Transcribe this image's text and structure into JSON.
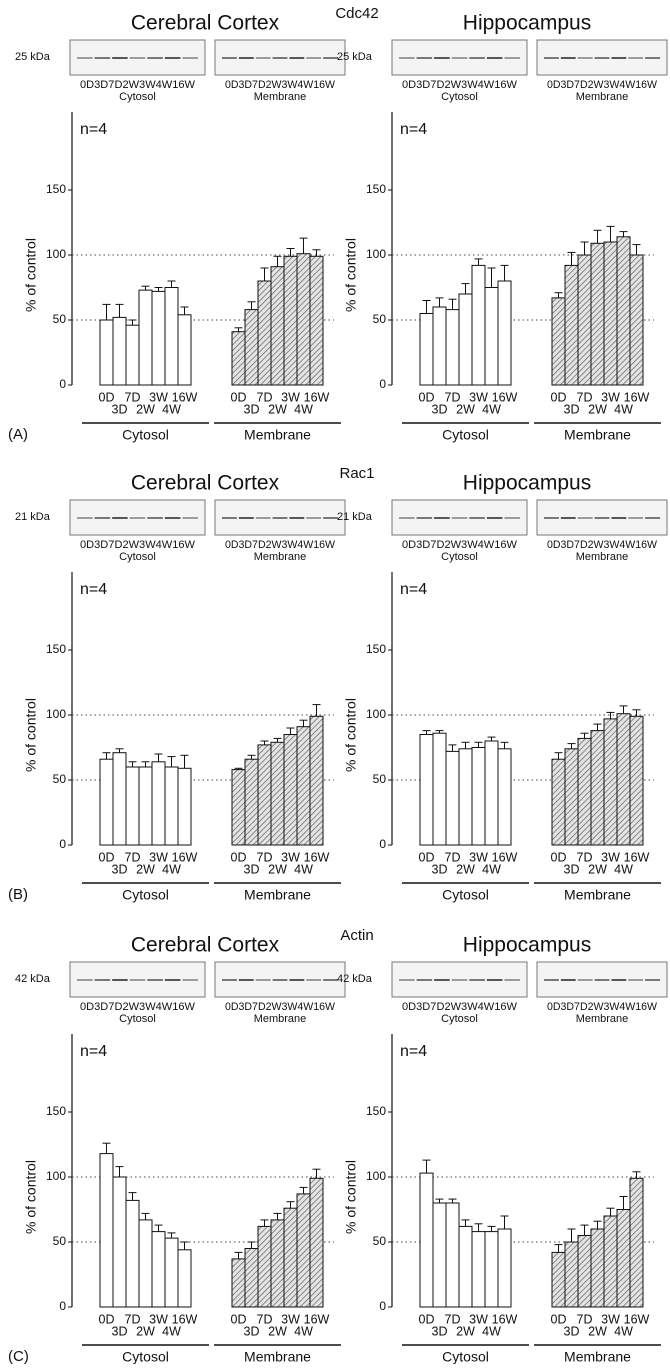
{
  "rows": [
    {
      "label": "(A)",
      "protein": "Cdc42"
    },
    {
      "label": "(B)",
      "protein": "Rac1"
    },
    {
      "label": "(C)",
      "protein": "Actin"
    }
  ],
  "chart_data": [
    {
      "type": "bar",
      "title": "Cerebral Cortex",
      "blot_label": "25 kDa",
      "blot_lanes": "0D3D7D2W3W4W16W",
      "annotation": "n=4",
      "ylabel": "% of control",
      "categories": [
        "0D",
        "3D",
        "7D",
        "2W",
        "3W",
        "4W",
        "16W"
      ],
      "series": [
        {
          "name": "Cytosol",
          "color": "#ffffff",
          "values": [
            50,
            52,
            46,
            73,
            72,
            75,
            54
          ],
          "errors": [
            12,
            10,
            4,
            3,
            3,
            5,
            6
          ]
        },
        {
          "name": "Membrane",
          "color": "#d0d0d0",
          "hatch": true,
          "values": [
            41,
            58,
            80,
            91,
            99,
            101,
            99
          ],
          "errors": [
            3,
            6,
            10,
            8,
            6,
            12,
            5
          ]
        }
      ],
      "ylim": [
        0,
        210
      ],
      "yticks": [
        0,
        50,
        100,
        150
      ],
      "ref_lines": [
        50,
        100
      ]
    },
    {
      "type": "bar",
      "title": "Hippocampus",
      "blot_label": "25 kDa",
      "blot_lanes": "0D3D7D2W3W4W16W",
      "annotation": "n=4",
      "ylabel": "% of control",
      "categories": [
        "0D",
        "3D",
        "7D",
        "2W",
        "3W",
        "4W",
        "16W"
      ],
      "series": [
        {
          "name": "Cytosol",
          "color": "#ffffff",
          "values": [
            55,
            60,
            58,
            70,
            92,
            75,
            80
          ],
          "errors": [
            10,
            7,
            8,
            8,
            5,
            15,
            12
          ]
        },
        {
          "name": "Membrane",
          "color": "#d0d0d0",
          "hatch": true,
          "values": [
            67,
            92,
            100,
            109,
            110,
            114,
            100
          ],
          "errors": [
            4,
            10,
            10,
            10,
            12,
            4,
            8
          ]
        }
      ],
      "ylim": [
        0,
        210
      ],
      "yticks": [
        0,
        50,
        100,
        150
      ],
      "ref_lines": [
        50,
        100
      ]
    },
    {
      "type": "bar",
      "title": "Cerebral Cortex",
      "blot_label": "21 kDa",
      "blot_lanes": "0D3D7D2W3W4W16W",
      "annotation": "n=4",
      "ylabel": "% of control",
      "categories": [
        "0D",
        "3D",
        "7D",
        "2W",
        "3W",
        "4W",
        "16W"
      ],
      "series": [
        {
          "name": "Cytosol",
          "color": "#ffffff",
          "values": [
            66,
            71,
            60,
            60,
            64,
            60,
            59
          ],
          "errors": [
            5,
            3,
            4,
            4,
            6,
            8,
            10
          ]
        },
        {
          "name": "Membrane",
          "color": "#d0d0d0",
          "hatch": true,
          "values": [
            58,
            66,
            77,
            79,
            85,
            91,
            99
          ],
          "errors": [
            1,
            3,
            3,
            3,
            5,
            5,
            9
          ]
        }
      ],
      "ylim": [
        0,
        210
      ],
      "yticks": [
        0,
        50,
        100,
        150
      ],
      "ref_lines": [
        50,
        100
      ]
    },
    {
      "type": "bar",
      "title": "Hippocampus",
      "blot_label": "21 kDa",
      "blot_lanes": "0D3D7D2W3W4W16W",
      "annotation": "n=4",
      "ylabel": "% of control",
      "categories": [
        "0D",
        "3D",
        "7D",
        "2W",
        "3W",
        "4W",
        "16W"
      ],
      "series": [
        {
          "name": "Cytosol",
          "color": "#ffffff",
          "values": [
            85,
            86,
            72,
            74,
            75,
            80,
            74
          ],
          "errors": [
            3,
            2,
            5,
            5,
            4,
            3,
            5
          ]
        },
        {
          "name": "Membrane",
          "color": "#d0d0d0",
          "hatch": true,
          "values": [
            66,
            74,
            82,
            88,
            97,
            101,
            99
          ],
          "errors": [
            5,
            4,
            4,
            5,
            5,
            6,
            5
          ]
        }
      ],
      "ylim": [
        0,
        210
      ],
      "yticks": [
        0,
        50,
        100,
        150
      ],
      "ref_lines": [
        50,
        100
      ]
    },
    {
      "type": "bar",
      "title": "Cerebral Cortex",
      "blot_label": "42 kDa",
      "blot_lanes": "0D3D7D2W3W4W16W",
      "annotation": "n=4",
      "ylabel": "% of control",
      "categories": [
        "0D",
        "3D",
        "7D",
        "2W",
        "3W",
        "4W",
        "16W"
      ],
      "series": [
        {
          "name": "Cytosol",
          "color": "#ffffff",
          "values": [
            118,
            100,
            82,
            67,
            58,
            53,
            44
          ],
          "errors": [
            8,
            8,
            6,
            5,
            5,
            4,
            6
          ]
        },
        {
          "name": "Membrane",
          "color": "#d0d0d0",
          "hatch": true,
          "values": [
            37,
            45,
            62,
            67,
            76,
            87,
            99
          ],
          "errors": [
            5,
            5,
            5,
            5,
            5,
            5,
            7
          ]
        }
      ],
      "ylim": [
        0,
        210
      ],
      "yticks": [
        0,
        50,
        100,
        150
      ],
      "ref_lines": [
        50,
        100
      ]
    },
    {
      "type": "bar",
      "title": "Hippocampus",
      "blot_label": "42 kDa",
      "blot_lanes": "0D3D7D2W3W4W16W",
      "annotation": "n=4",
      "ylabel": "% of control",
      "categories": [
        "0D",
        "3D",
        "7D",
        "2W",
        "3W",
        "4W",
        "16W"
      ],
      "series": [
        {
          "name": "Cytosol",
          "color": "#ffffff",
          "values": [
            103,
            80,
            80,
            62,
            58,
            58,
            60
          ],
          "errors": [
            10,
            3,
            3,
            5,
            6,
            4,
            10
          ]
        },
        {
          "name": "Membrane",
          "color": "#d0d0d0",
          "hatch": true,
          "values": [
            42,
            50,
            55,
            60,
            70,
            75,
            99
          ],
          "errors": [
            6,
            10,
            8,
            6,
            6,
            10,
            5
          ]
        }
      ],
      "ylim": [
        0,
        210
      ],
      "yticks": [
        0,
        50,
        100,
        150
      ],
      "ref_lines": [
        50,
        100
      ]
    }
  ]
}
